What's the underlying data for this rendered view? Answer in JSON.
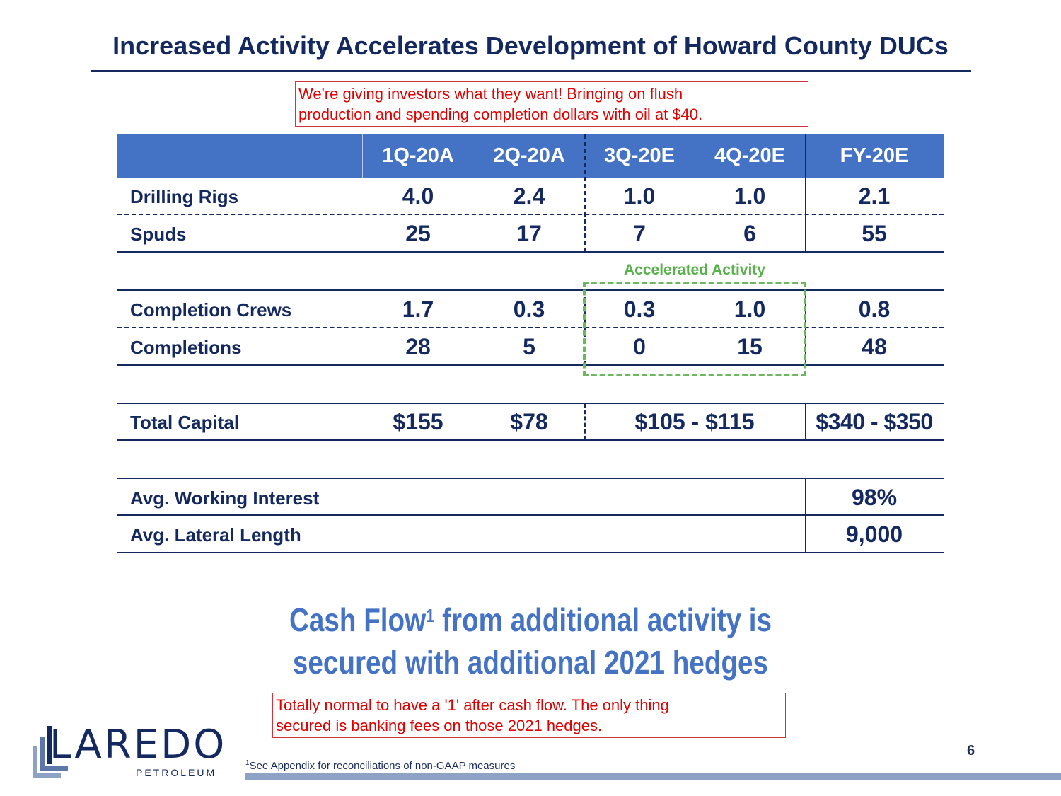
{
  "title": "Increased Activity Accelerates Development of Howard County DUCs",
  "callout_top": {
    "line1": "We're giving investors what they want! Bringing on flush",
    "line2": "production and spending completion dollars with oil at $40."
  },
  "table": {
    "headers": [
      "",
      "1Q-20A",
      "2Q-20A",
      "3Q-20E",
      "4Q-20E",
      "FY-20E"
    ],
    "rows": {
      "drilling_rigs": {
        "label": "Drilling Rigs",
        "values": [
          "4.0",
          "2.4",
          "1.0",
          "1.0",
          "2.1"
        ]
      },
      "spuds": {
        "label": "Spuds",
        "values": [
          "25",
          "17",
          "7",
          "6",
          "55"
        ]
      },
      "completion_crews": {
        "label": "Completion Crews",
        "values": [
          "1.7",
          "0.3",
          "0.3",
          "1.0",
          "0.8"
        ]
      },
      "completions": {
        "label": "Completions",
        "values": [
          "28",
          "5",
          "0",
          "15",
          "48"
        ]
      },
      "total_capital": {
        "label": "Total Capital",
        "values": [
          "$155",
          "$78",
          "$105 - $115",
          "$340 - $350"
        ]
      },
      "avg_working_interest": {
        "label": "Avg. Working Interest",
        "value": "98%"
      },
      "avg_lateral_length": {
        "label": "Avg. Lateral Length",
        "value": "9,000"
      }
    },
    "highlight_label": "Accelerated Activity"
  },
  "headline": {
    "part1": "Cash Flow",
    "superscript": "1",
    "part2": " from additional activity is",
    "line2": "secured with additional 2021 hedges"
  },
  "callout_bottom": {
    "line1": "Totally normal to have a '1' after cash flow. The only thing",
    "line2": "secured is banking fees on those 2021 hedges."
  },
  "logo": {
    "name": "LAREDO",
    "sub": "PETROLEUM"
  },
  "footnote": {
    "marker": "1",
    "text": "See Appendix for reconciliations of non-GAAP measures"
  },
  "page_number": "6",
  "colors": {
    "navy": "#14295f",
    "header_blue": "#4472c4",
    "callout_red": "#e00000",
    "highlight_green": "#59b14c"
  }
}
